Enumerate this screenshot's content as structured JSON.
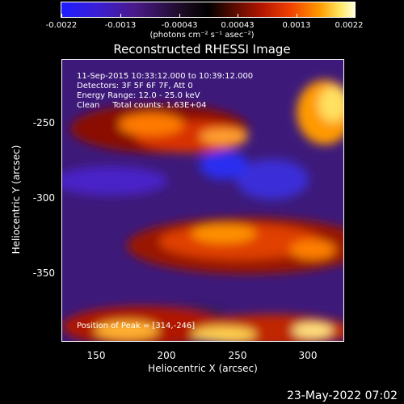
{
  "colorbar": {
    "tick_labels": [
      "-0.0022",
      "-0.0013",
      "-0.00043",
      "0.00043",
      "0.0013",
      "0.0022"
    ],
    "units": "(photons cm⁻² s⁻¹ asec⁻²)"
  },
  "title": "Reconstructed RHESSI Image",
  "overlay": {
    "line1": "11-Sep-2015 10:33:12.000 to 10:39:12.000",
    "line2": "Detectors: 3F 5F 6F 7F, Att 0",
    "line3": "Energy Range: 12.0 - 25.0 keV",
    "line4": "Clean     Total counts: 1.63E+04",
    "peak": "Position of Peak = [314,-246]"
  },
  "axes": {
    "xlabel": "Heliocentric X (arcsec)",
    "ylabel": "Heliocentric Y (arcsec)",
    "xticks": [
      "150",
      "200",
      "250",
      "300"
    ],
    "yticks": [
      "-250",
      "-300",
      "-350"
    ]
  },
  "footer": {
    "timestamp": "23-May-2022 07:02"
  },
  "colors": {
    "background": "#000000",
    "foreground": "#ffffff"
  }
}
